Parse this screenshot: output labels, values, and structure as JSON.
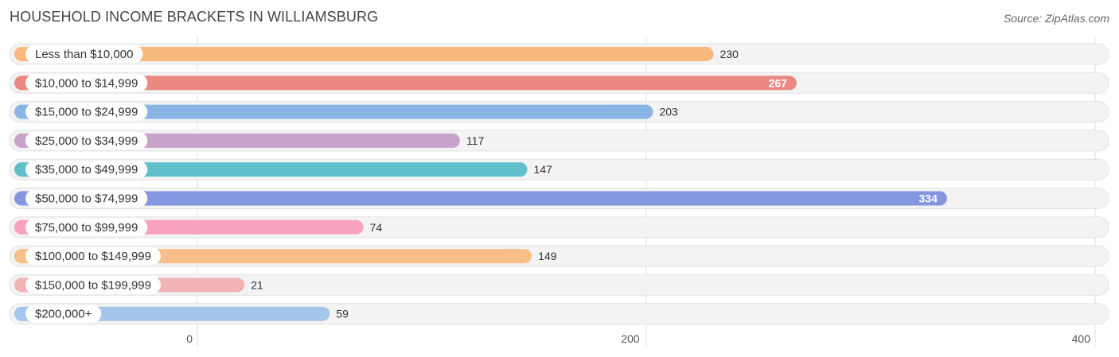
{
  "header": {
    "title": "HOUSEHOLD INCOME BRACKETS IN WILLIAMSBURG",
    "source": "Source: ZipAtlas.com"
  },
  "chart_data": {
    "type": "bar",
    "orientation": "horizontal",
    "categories": [
      "Less than $10,000",
      "$10,000 to $14,999",
      "$15,000 to $24,999",
      "$25,000 to $34,999",
      "$35,000 to $49,999",
      "$50,000 to $74,999",
      "$75,000 to $99,999",
      "$100,000 to $149,999",
      "$150,000 to $199,999",
      "$200,000+"
    ],
    "values": [
      230,
      267,
      203,
      117,
      147,
      334,
      74,
      149,
      21,
      59
    ],
    "colors": [
      "#f9b97c",
      "#eb8882",
      "#8ab4e4",
      "#c7a3ca",
      "#5fc0cb",
      "#8496e0",
      "#f8a2c0",
      "#f9bf88",
      "#f2b3b4",
      "#a4c6ea"
    ],
    "value_label_inside": [
      false,
      true,
      false,
      false,
      false,
      true,
      false,
      false,
      false,
      false
    ],
    "xlim": [
      0,
      400
    ],
    "xticks": [
      0,
      200,
      400
    ],
    "grid": true
  }
}
